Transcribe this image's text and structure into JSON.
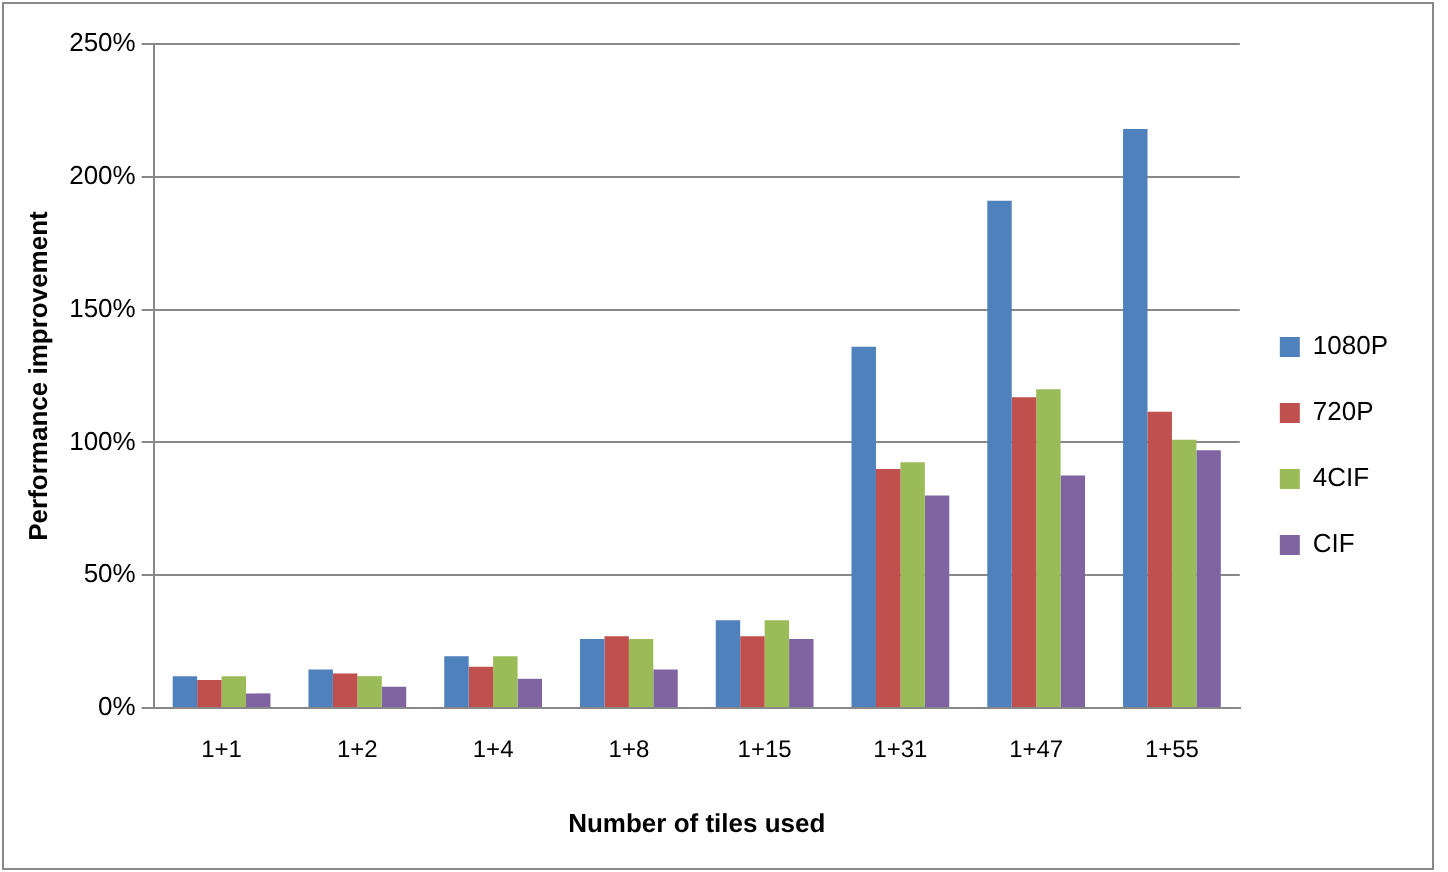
{
  "chart_data": {
    "type": "bar",
    "xlabel": "Number of tiles used",
    "ylabel": "Performance improvement",
    "categories": [
      "1+1",
      "1+2",
      "1+4",
      "1+8",
      "1+15",
      "1+31",
      "1+47",
      "1+55"
    ],
    "series": [
      {
        "name": "1080P",
        "color": "#4f81bd",
        "values": [
          12,
          14.5,
          19.5,
          26,
          33,
          136,
          191,
          218
        ]
      },
      {
        "name": "720P",
        "color": "#c0504d",
        "values": [
          10.5,
          13,
          15.5,
          27,
          27,
          90,
          117,
          111.5
        ]
      },
      {
        "name": "4CIF",
        "color": "#9bbb59",
        "values": [
          12,
          12,
          19.5,
          26,
          33,
          92.5,
          120,
          101
        ]
      },
      {
        "name": "CIF",
        "color": "#8064a2",
        "values": [
          5.5,
          8,
          11,
          14.5,
          26,
          80,
          87.5,
          97
        ]
      }
    ],
    "ylim": [
      0,
      250
    ],
    "yticks": [
      {
        "value": 0,
        "label": "0%"
      },
      {
        "value": 50,
        "label": "50%"
      },
      {
        "value": 100,
        "label": "100%"
      },
      {
        "value": 150,
        "label": "150%"
      },
      {
        "value": 200,
        "label": "200%"
      },
      {
        "value": 250,
        "label": "250%"
      }
    ],
    "grid": "y",
    "legend": "right"
  }
}
